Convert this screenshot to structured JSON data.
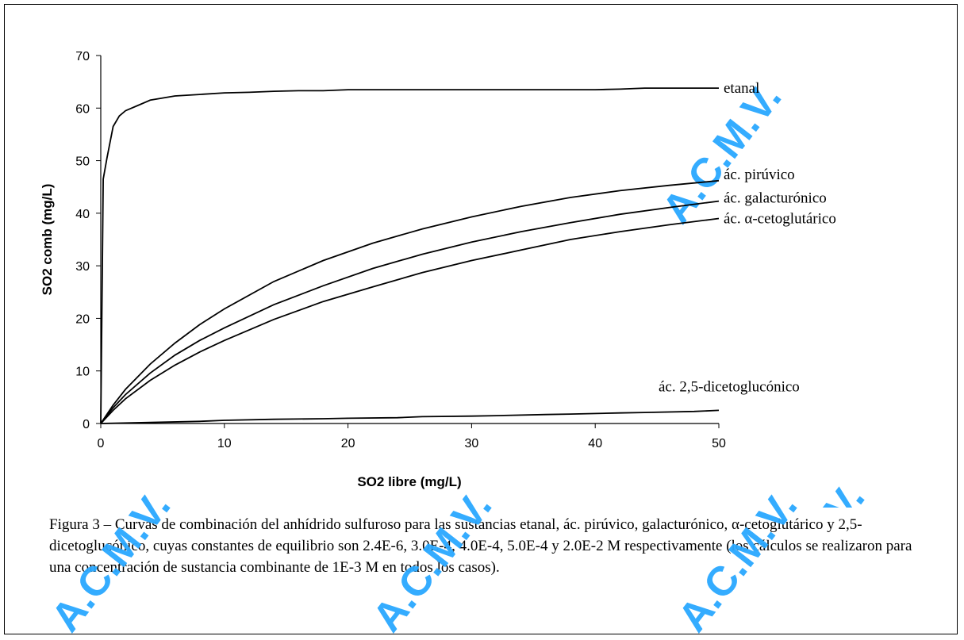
{
  "chart_data": {
    "type": "line",
    "xlabel": "SO2 libre (mg/L)",
    "ylabel": "SO2 comb (mg/L)",
    "xlim": [
      0,
      50
    ],
    "ylim": [
      0,
      70
    ],
    "xticks": [
      "0",
      "10",
      "20",
      "30",
      "40",
      "50"
    ],
    "yticks": [
      "0",
      "10",
      "20",
      "30",
      "40",
      "50",
      "60",
      "70"
    ],
    "grid": false,
    "legend": "none",
    "series": [
      {
        "name": "etanal",
        "x": [
          0,
          0.2,
          0.5,
          1,
          1.5,
          2,
          3,
          4,
          6,
          8,
          10,
          12,
          14,
          16,
          18,
          20,
          25,
          30,
          35,
          40,
          42,
          44,
          46,
          48,
          50
        ],
        "y": [
          0,
          46.5,
          50.5,
          56.5,
          58.5,
          59.5,
          60.5,
          61.5,
          62.3,
          62.6,
          62.9,
          63.0,
          63.2,
          63.3,
          63.3,
          63.5,
          63.5,
          63.5,
          63.5,
          63.5,
          63.6,
          63.8,
          63.8,
          63.8,
          63.8
        ]
      },
      {
        "name": "ác. pirúvico",
        "x": [
          0,
          1,
          2,
          4,
          6,
          8,
          10,
          14,
          18,
          22,
          26,
          30,
          34,
          38,
          42,
          46,
          50
        ],
        "y": [
          0,
          3.5,
          6.5,
          11.3,
          15.3,
          18.8,
          21.8,
          27.0,
          31.0,
          34.3,
          37.0,
          39.3,
          41.3,
          43.0,
          44.3,
          45.3,
          46.2
        ]
      },
      {
        "name": "ác. galacturónico",
        "x": [
          0,
          1,
          2,
          4,
          6,
          8,
          10,
          14,
          18,
          22,
          26,
          30,
          34,
          38,
          42,
          46,
          50
        ],
        "y": [
          0,
          3.0,
          5.5,
          9.6,
          13.0,
          15.8,
          18.2,
          22.6,
          26.2,
          29.5,
          32.2,
          34.5,
          36.5,
          38.2,
          39.8,
          41.1,
          42.3
        ]
      },
      {
        "name": "ác. α-cetoglutárico",
        "x": [
          0,
          1,
          2,
          4,
          6,
          8,
          10,
          14,
          18,
          22,
          26,
          30,
          34,
          38,
          42,
          46,
          50
        ],
        "y": [
          0,
          2.5,
          4.7,
          8.2,
          11.1,
          13.6,
          15.8,
          19.8,
          23.2,
          26.0,
          28.7,
          31.0,
          33.0,
          35.0,
          36.5,
          37.8,
          39.0
        ]
      },
      {
        "name": "ác. 2,5-dicetoglucónico",
        "x": [
          0,
          4,
          8,
          10,
          14,
          18,
          20,
          24,
          26,
          30,
          32,
          36,
          38,
          42,
          44,
          48,
          50
        ],
        "y": [
          0,
          0.2,
          0.4,
          0.6,
          0.8,
          0.9,
          1.0,
          1.1,
          1.3,
          1.4,
          1.5,
          1.7,
          1.8,
          2.0,
          2.1,
          2.3,
          2.5
        ]
      }
    ]
  },
  "caption": "Figura 3 – Curvas de combinación del anhídrido sulfuroso para las sustancias etanal, ác. pirúvico, galacturónico, α-cetoglutárico y 2,5-dicetoglucónico, cuyas constantes de equilibrio son 2.4E-6, 3.0E-4, 4.0E-4, 5.0E-4 y 2.0E-2 M respectivamente (los cálculos se realizaron para una concentración de sustancia combinante de 1E-3 M en todos los casos).",
  "watermark": "A.C.M.V.",
  "colors": {
    "line": "#000000",
    "watermark": "#2aa8ff"
  }
}
